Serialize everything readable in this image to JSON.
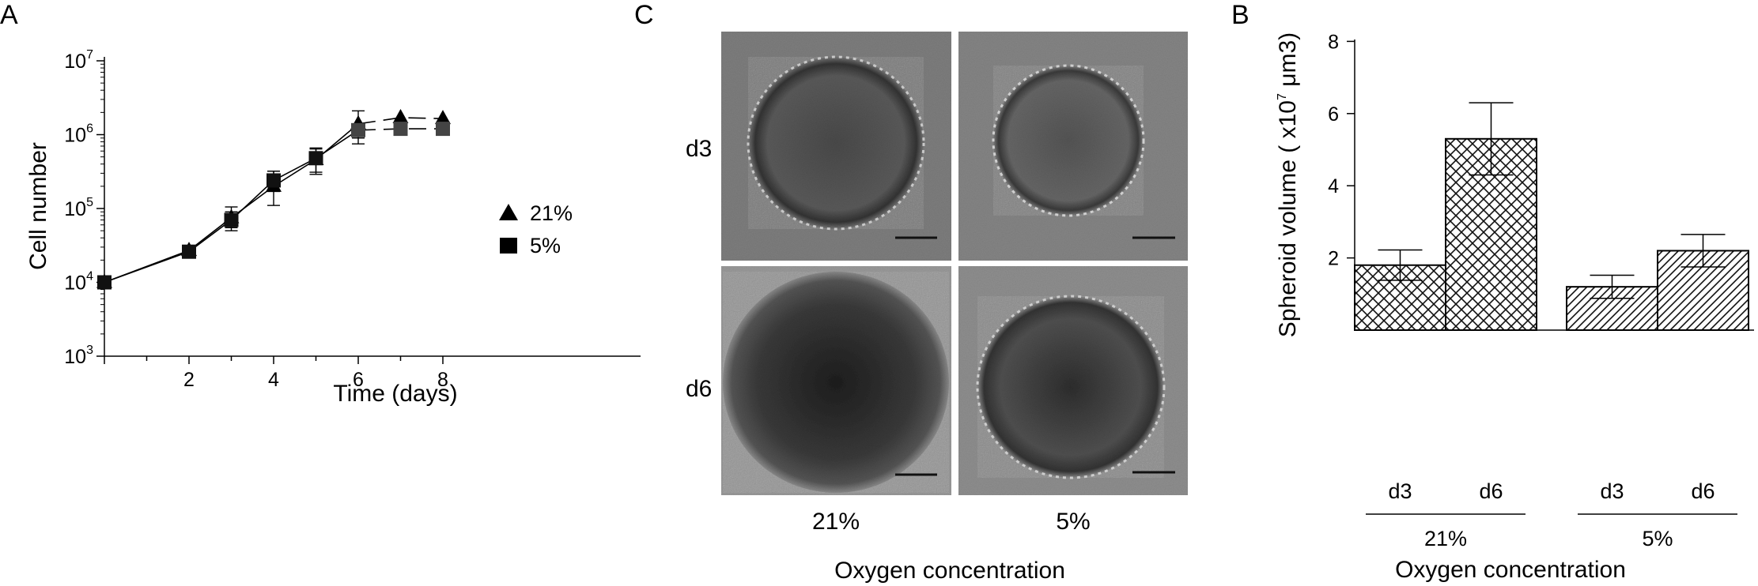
{
  "panels": {
    "a_letter": "A",
    "c_letter": "C",
    "b_letter": "B"
  },
  "chart_data": [
    {
      "panel": "A",
      "type": "line",
      "xlabel": "Time (days)",
      "ylabel": "Cell number",
      "yscale": "log",
      "ylim": [
        1000,
        10000000
      ],
      "xticks": [
        "2",
        "4",
        "6",
        "8"
      ],
      "yticks": [
        {
          "base": "10",
          "exp": "3"
        },
        {
          "base": "10",
          "exp": "4"
        },
        {
          "base": "10",
          "exp": "5"
        },
        {
          "base": "10",
          "exp": "6"
        },
        {
          "base": "10",
          "exp": "7"
        }
      ],
      "legend_placement": "right",
      "series": [
        {
          "name": "21%",
          "marker": "triangle",
          "x": [
            0,
            2,
            3,
            4,
            5,
            6,
            7,
            8
          ],
          "y": [
            10000,
            27000,
            75000,
            200000,
            460000,
            1400000,
            1700000,
            1650000
          ],
          "err_low": [
            null,
            24000,
            55000,
            110000,
            310000,
            750000,
            null,
            null
          ],
          "err_high": [
            null,
            30000,
            105000,
            320000,
            640000,
            2100000,
            null,
            null
          ],
          "dashed_from_x": 6
        },
        {
          "name": "5%",
          "marker": "square",
          "x": [
            0,
            2,
            3,
            4,
            5,
            6,
            7,
            8
          ],
          "y": [
            10000,
            26000,
            70000,
            240000,
            480000,
            1150000,
            1200000,
            1200000
          ],
          "err_low": [
            null,
            23000,
            50000,
            170000,
            290000,
            900000,
            null,
            null
          ],
          "err_high": [
            null,
            29000,
            90000,
            320000,
            660000,
            1400000,
            null,
            null
          ],
          "dashed_from_x": 6
        }
      ]
    },
    {
      "panel": "B",
      "type": "bar",
      "ylabel_main": "Spheroid volume ( x10",
      "ylabel_exp": "7",
      "ylabel_unit": " μm3)",
      "ylim": [
        0,
        8
      ],
      "yticks": [
        "2",
        "4",
        "6",
        "8"
      ],
      "group_xlabel": "Oxygen concentration",
      "groups": [
        {
          "label": "21%",
          "categories": [
            "d3",
            "d6"
          ],
          "values": [
            1.8,
            5.3
          ],
          "errors": [
            0.42,
            1.0
          ],
          "pattern": "crosshatch"
        },
        {
          "label": "5%",
          "categories": [
            "d3",
            "d6"
          ],
          "values": [
            1.2,
            2.2
          ],
          "errors": [
            0.32,
            0.45
          ],
          "pattern": "diagonal"
        }
      ]
    }
  ],
  "image_panel": {
    "rows": [
      "d3",
      "d6"
    ],
    "columns": [
      "21%",
      "5%"
    ],
    "xlabel": "Oxygen concentration"
  }
}
